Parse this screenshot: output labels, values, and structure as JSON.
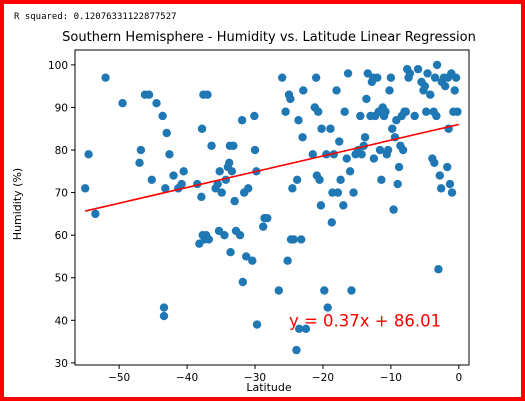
{
  "output_text": "R squared: 0.12076331122877527",
  "chart_data": {
    "type": "scatter",
    "title": "Southern Hemisphere - Humidity vs. Latitude Linear Regression",
    "xlabel": "Latitude",
    "ylabel": "Humidity (%)",
    "xlim": [
      -56.5,
      1.5
    ],
    "ylim": [
      29.5,
      103.5
    ],
    "xticks": [
      -50,
      -40,
      -30,
      -20,
      -10,
      0
    ],
    "yticks": [
      30,
      40,
      50,
      60,
      70,
      80,
      90,
      100
    ],
    "grid": false,
    "point_color": "#1f77b4",
    "line_color": "#ff0000",
    "regression": {
      "slope": 0.37,
      "intercept": 86.01,
      "x_range": [
        -55,
        0
      ],
      "equation_label": "y = 0.37x + 86.01"
    },
    "points": [
      [
        -55,
        71
      ],
      [
        -54.5,
        79
      ],
      [
        -53.5,
        65
      ],
      [
        -52,
        97
      ],
      [
        -49.5,
        91
      ],
      [
        -47,
        77
      ],
      [
        -46.8,
        80
      ],
      [
        -46.2,
        93
      ],
      [
        -45.6,
        93
      ],
      [
        -45.2,
        73
      ],
      [
        -44.5,
        91
      ],
      [
        -43.6,
        88
      ],
      [
        -43.4,
        43
      ],
      [
        -43.4,
        41
      ],
      [
        -43.2,
        71
      ],
      [
        -43,
        84
      ],
      [
        -42.6,
        79
      ],
      [
        -42,
        74
      ],
      [
        -41.3,
        71
      ],
      [
        -40.8,
        72
      ],
      [
        -40.5,
        75
      ],
      [
        -38.5,
        72
      ],
      [
        -38.2,
        58
      ],
      [
        -37.9,
        69
      ],
      [
        -37.8,
        85
      ],
      [
        -37.7,
        60
      ],
      [
        -37.6,
        93
      ],
      [
        -37.4,
        59
      ],
      [
        -37.2,
        60
      ],
      [
        -37,
        93
      ],
      [
        -36.8,
        59
      ],
      [
        -36.4,
        81
      ],
      [
        -35.8,
        71
      ],
      [
        -35.5,
        72
      ],
      [
        -35.3,
        61
      ],
      [
        -35.2,
        75
      ],
      [
        -34.9,
        70
      ],
      [
        -34.5,
        60
      ],
      [
        -34.3,
        73
      ],
      [
        -34,
        76
      ],
      [
        -33.8,
        77
      ],
      [
        -33.7,
        81
      ],
      [
        -33.6,
        56
      ],
      [
        -33.4,
        75
      ],
      [
        -33.2,
        81
      ],
      [
        -33,
        68
      ],
      [
        -32.8,
        61
      ],
      [
        -32.2,
        60
      ],
      [
        -31.9,
        87
      ],
      [
        -31.8,
        49
      ],
      [
        -31.6,
        70
      ],
      [
        -31.3,
        55
      ],
      [
        -31,
        71
      ],
      [
        -30.4,
        54
      ],
      [
        -30.1,
        88
      ],
      [
        -30,
        80
      ],
      [
        -29.8,
        75
      ],
      [
        -29.7,
        39
      ],
      [
        -28.8,
        62
      ],
      [
        -28.6,
        64
      ],
      [
        -28.2,
        64
      ],
      [
        -26.5,
        47
      ],
      [
        -26,
        97
      ],
      [
        -25.5,
        89
      ],
      [
        -25.2,
        54
      ],
      [
        -25,
        93
      ],
      [
        -24.8,
        92
      ],
      [
        -24.7,
        59
      ],
      [
        -24.5,
        71
      ],
      [
        -24.3,
        59
      ],
      [
        -23.9,
        33
      ],
      [
        -23.8,
        73
      ],
      [
        -23.6,
        87
      ],
      [
        -23.5,
        38
      ],
      [
        -23.2,
        59
      ],
      [
        -23,
        83
      ],
      [
        -22.9,
        94
      ],
      [
        -22.5,
        38
      ],
      [
        -21.5,
        79
      ],
      [
        -21.2,
        90
      ],
      [
        -21,
        97
      ],
      [
        -20.9,
        74
      ],
      [
        -20.7,
        89
      ],
      [
        -20.5,
        73
      ],
      [
        -20.3,
        67
      ],
      [
        -20.2,
        85
      ],
      [
        -19.8,
        47
      ],
      [
        -19.5,
        79
      ],
      [
        -19.3,
        43
      ],
      [
        -18.9,
        85
      ],
      [
        -18.7,
        63
      ],
      [
        -18.6,
        70
      ],
      [
        -18.4,
        79
      ],
      [
        -18,
        94
      ],
      [
        -17.8,
        70
      ],
      [
        -17.6,
        82
      ],
      [
        -17.4,
        73
      ],
      [
        -17,
        67
      ],
      [
        -16.8,
        89
      ],
      [
        -16.5,
        78
      ],
      [
        -16.3,
        98
      ],
      [
        -16,
        75
      ],
      [
        -15.8,
        47
      ],
      [
        -15.5,
        70
      ],
      [
        -15.2,
        79
      ],
      [
        -14.8,
        80
      ],
      [
        -14.5,
        88
      ],
      [
        -14.3,
        79
      ],
      [
        -14,
        81
      ],
      [
        -13.8,
        83
      ],
      [
        -13.6,
        92
      ],
      [
        -13.4,
        98
      ],
      [
        -13,
        88
      ],
      [
        -12.8,
        96
      ],
      [
        -12.6,
        97
      ],
      [
        -12.5,
        78
      ],
      [
        -12.3,
        88
      ],
      [
        -12,
        97
      ],
      [
        -11.8,
        89
      ],
      [
        -11.6,
        80
      ],
      [
        -11.4,
        73
      ],
      [
        -11.2,
        90
      ],
      [
        -11,
        88
      ],
      [
        -10.8,
        89
      ],
      [
        -10.6,
        79
      ],
      [
        -10.4,
        80
      ],
      [
        -10.2,
        94
      ],
      [
        -10,
        97
      ],
      [
        -9.8,
        85
      ],
      [
        -9.6,
        66
      ],
      [
        -9.4,
        83
      ],
      [
        -9.2,
        87
      ],
      [
        -9,
        72
      ],
      [
        -8.8,
        76
      ],
      [
        -8.6,
        81
      ],
      [
        -8.4,
        88
      ],
      [
        -8.2,
        80
      ],
      [
        -8,
        89
      ],
      [
        -7.8,
        89
      ],
      [
        -7.6,
        99
      ],
      [
        -7.4,
        97
      ],
      [
        -7.2,
        98
      ],
      [
        -6.5,
        88
      ],
      [
        -6,
        99
      ],
      [
        -5.5,
        96
      ],
      [
        -5.2,
        94
      ],
      [
        -5,
        95
      ],
      [
        -4.8,
        89
      ],
      [
        -4.6,
        98
      ],
      [
        -4.2,
        93
      ],
      [
        -3.9,
        78
      ],
      [
        -3.7,
        89
      ],
      [
        -3.6,
        77
      ],
      [
        -3.5,
        97
      ],
      [
        -3.3,
        88
      ],
      [
        -3.2,
        100
      ],
      [
        -3,
        52
      ],
      [
        -2.8,
        74
      ],
      [
        -2.6,
        71
      ],
      [
        -2.5,
        96
      ],
      [
        -2.2,
        97
      ],
      [
        -2,
        95
      ],
      [
        -1.7,
        76
      ],
      [
        -1.6,
        97
      ],
      [
        -1.5,
        85
      ],
      [
        -1.3,
        72
      ],
      [
        -1.1,
        98
      ],
      [
        -1,
        70
      ],
      [
        -0.8,
        89
      ],
      [
        -0.6,
        94
      ],
      [
        -0.4,
        97
      ],
      [
        -0.2,
        89
      ]
    ]
  }
}
